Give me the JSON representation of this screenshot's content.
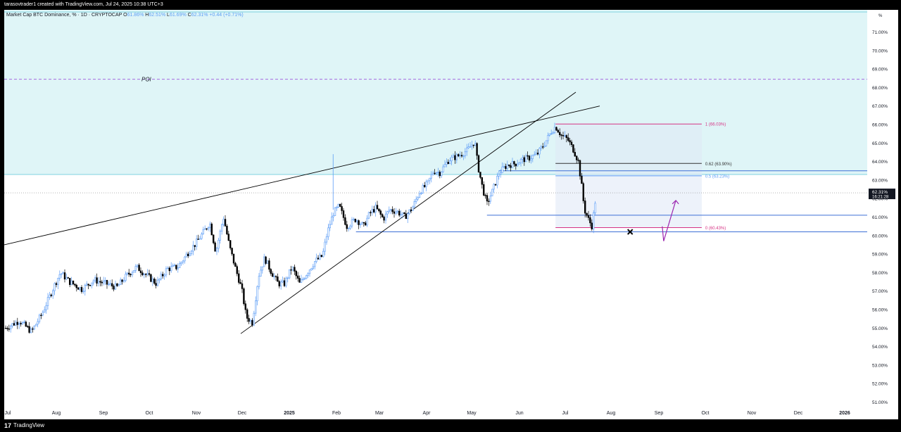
{
  "header": {
    "attribution": "tarasovtrader1 created with TradingView.com, Jul 24, 2025 10:38 UTC+3"
  },
  "legend": {
    "symbol": "Market Cap BTC Dominance, % · 1D · CRYPTOCAP",
    "o_label": "O",
    "o_value": "61.86%",
    "h_label": "H",
    "h_value": "62.51%",
    "l_label": "L",
    "l_value": "61.69%",
    "c_label": "C",
    "c_value": "62.31%",
    "change": "+0.44 (+0.71%)"
  },
  "footer": {
    "logo_text": "TradingView",
    "logo_mark": "17"
  },
  "colors": {
    "zone_fill": "#dff5f7",
    "zone_border": "#7fd3e0",
    "up_candle": "#5b9cf6",
    "down_candle": "#000000",
    "fib_pink": "#d63384",
    "fib_blue": "#5b9cf6",
    "arrow": "#9c27b0",
    "poi": "#a56be0"
  },
  "chart_data": {
    "type": "candlestick",
    "y_unit_label": "%",
    "ylim": [
      50.6,
      72.2
    ],
    "y_ticks": [
      "71.00%",
      "70.00%",
      "69.00%",
      "68.00%",
      "67.00%",
      "66.00%",
      "65.00%",
      "64.00%",
      "63.00%",
      "62.00%",
      "61.00%",
      "60.00%",
      "59.00%",
      "58.00%",
      "57.00%",
      "56.00%",
      "55.00%",
      "54.00%",
      "53.00%",
      "52.00%",
      "51.00%"
    ],
    "x_ticks": [
      "Jul",
      "Aug",
      "Sep",
      "Oct",
      "Nov",
      "Dec",
      "2025",
      "Feb",
      "Mar",
      "Apr",
      "May",
      "Jun",
      "Jul",
      "Aug",
      "Sep",
      "Oct",
      "Nov",
      "Dec",
      "2026"
    ],
    "last_price": {
      "value": 62.31,
      "label": "62.31%",
      "countdown": "16:21:28"
    },
    "poi": {
      "label": "POI",
      "value": 68.45
    },
    "supply_zone": [
      63.3,
      72.2
    ],
    "fib_levels": [
      {
        "label": "1 (66.03%)",
        "value": 66.03
      },
      {
        "label": "0.62 (63.90%)",
        "value": 63.9
      },
      {
        "label": "0.5 (63.23%)",
        "value": 63.23
      },
      {
        "label": "0 (60.43%)",
        "value": 60.43
      }
    ],
    "horizontal_levels": [
      61.1,
      60.2,
      63.5
    ],
    "price_path": [
      [
        "2024-07-01",
        55.0
      ],
      [
        "2024-07-10",
        55.4
      ],
      [
        "2024-07-18",
        54.8
      ],
      [
        "2024-07-25",
        55.8
      ],
      [
        "2024-08-02",
        57.3
      ],
      [
        "2024-08-06",
        58.0
      ],
      [
        "2024-08-12",
        57.5
      ],
      [
        "2024-08-20",
        57.1
      ],
      [
        "2024-08-28",
        57.6
      ],
      [
        "2024-09-05",
        57.4
      ],
      [
        "2024-09-12",
        57.2
      ],
      [
        "2024-09-18",
        57.8
      ],
      [
        "2024-09-25",
        58.3
      ],
      [
        "2024-10-01",
        57.9
      ],
      [
        "2024-10-08",
        57.4
      ],
      [
        "2024-10-15",
        58.2
      ],
      [
        "2024-10-22",
        58.3
      ],
      [
        "2024-10-29",
        59.1
      ],
      [
        "2024-11-03",
        59.6
      ],
      [
        "2024-11-08",
        60.2
      ],
      [
        "2024-11-12",
        60.7
      ],
      [
        "2024-11-16",
        59.1
      ],
      [
        "2024-11-21",
        61.0
      ],
      [
        "2024-11-25",
        59.4
      ],
      [
        "2024-11-29",
        58.2
      ],
      [
        "2024-12-03",
        57.1
      ],
      [
        "2024-12-06",
        55.6
      ],
      [
        "2024-12-10",
        55.3
      ],
      [
        "2024-12-14",
        57.8
      ],
      [
        "2024-12-18",
        58.8
      ],
      [
        "2024-12-22",
        58.1
      ],
      [
        "2024-12-27",
        57.4
      ],
      [
        "2024-12-31",
        57.4
      ],
      [
        "2025-01-05",
        58.3
      ],
      [
        "2025-01-10",
        57.4
      ],
      [
        "2025-01-15",
        58.0
      ],
      [
        "2025-01-20",
        58.6
      ],
      [
        "2025-01-25",
        58.9
      ],
      [
        "2025-01-28",
        60.1
      ],
      [
        "2025-02-01",
        61.2
      ],
      [
        "2025-02-05",
        61.6
      ],
      [
        "2025-02-10",
        60.5
      ],
      [
        "2025-02-16",
        60.9
      ],
      [
        "2025-02-21",
        60.5
      ],
      [
        "2025-02-25",
        61.2
      ],
      [
        "2025-03-01",
        61.5
      ],
      [
        "2025-03-06",
        60.9
      ],
      [
        "2025-03-10",
        61.4
      ],
      [
        "2025-03-15",
        61.3
      ],
      [
        "2025-03-20",
        61.0
      ],
      [
        "2025-03-25",
        61.5
      ],
      [
        "2025-03-30",
        62.4
      ],
      [
        "2025-04-04",
        62.8
      ],
      [
        "2025-04-08",
        63.5
      ],
      [
        "2025-04-12",
        63.4
      ],
      [
        "2025-04-18",
        64.1
      ],
      [
        "2025-04-24",
        64.3
      ],
      [
        "2025-04-30",
        64.6
      ],
      [
        "2025-05-05",
        65.1
      ],
      [
        "2025-05-07",
        63.8
      ],
      [
        "2025-05-10",
        62.6
      ],
      [
        "2025-05-13",
        61.7
      ],
      [
        "2025-05-17",
        62.5
      ],
      [
        "2025-05-21",
        63.4
      ],
      [
        "2025-05-26",
        63.8
      ],
      [
        "2025-06-01",
        63.9
      ],
      [
        "2025-06-05",
        64.1
      ],
      [
        "2025-06-10",
        64.2
      ],
      [
        "2025-06-15",
        64.4
      ],
      [
        "2025-06-20",
        65.0
      ],
      [
        "2025-06-24",
        65.6
      ],
      [
        "2025-06-27",
        65.9
      ],
      [
        "2025-07-01",
        65.4
      ],
      [
        "2025-07-05",
        65.2
      ],
      [
        "2025-07-09",
        64.6
      ],
      [
        "2025-07-12",
        64.0
      ],
      [
        "2025-07-14",
        62.8
      ],
      [
        "2025-07-16",
        61.4
      ],
      [
        "2025-07-19",
        60.8
      ],
      [
        "2025-07-21",
        60.5
      ],
      [
        "2025-07-23",
        61.8
      ],
      [
        "2025-07-24",
        62.31
      ]
    ]
  }
}
